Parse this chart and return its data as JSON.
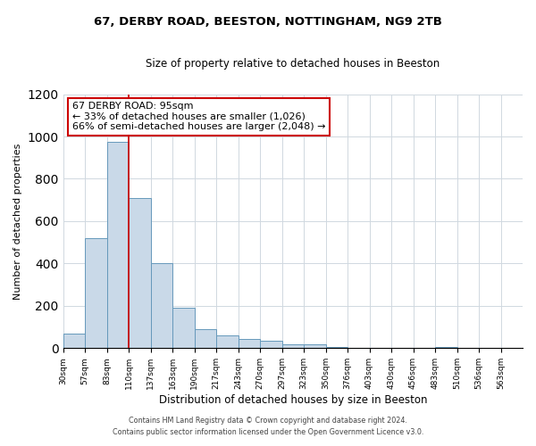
{
  "title": "67, DERBY ROAD, BEESTON, NOTTINGHAM, NG9 2TB",
  "subtitle": "Size of property relative to detached houses in Beeston",
  "xlabel": "Distribution of detached houses by size in Beeston",
  "ylabel": "Number of detached properties",
  "bar_color": "#c9d9e8",
  "bar_edge_color": "#6699bb",
  "bin_labels": [
    "30sqm",
    "57sqm",
    "83sqm",
    "110sqm",
    "137sqm",
    "163sqm",
    "190sqm",
    "217sqm",
    "243sqm",
    "270sqm",
    "297sqm",
    "323sqm",
    "350sqm",
    "376sqm",
    "403sqm",
    "430sqm",
    "456sqm",
    "483sqm",
    "510sqm",
    "536sqm",
    "563sqm"
  ],
  "bin_values": [
    70,
    520,
    975,
    710,
    400,
    190,
    90,
    60,
    45,
    35,
    20,
    20,
    5,
    0,
    0,
    0,
    0,
    5,
    0,
    0,
    0
  ],
  "property_line_x": 3.0,
  "property_line_label": "67 DERBY ROAD: 95sqm",
  "annotation_line1": "← 33% of detached houses are smaller (1,026)",
  "annotation_line2": "66% of semi-detached houses are larger (2,048) →",
  "annotation_box_color": "#ffffff",
  "annotation_box_edge_color": "#cc0000",
  "property_line_color": "#cc0000",
  "ylim": [
    0,
    1200
  ],
  "yticks": [
    0,
    200,
    400,
    600,
    800,
    1000,
    1200
  ],
  "footnote1": "Contains HM Land Registry data © Crown copyright and database right 2024.",
  "footnote2": "Contains public sector information licensed under the Open Government Licence v3.0.",
  "background_color": "#ffffff",
  "grid_color": "#d0d8e0"
}
